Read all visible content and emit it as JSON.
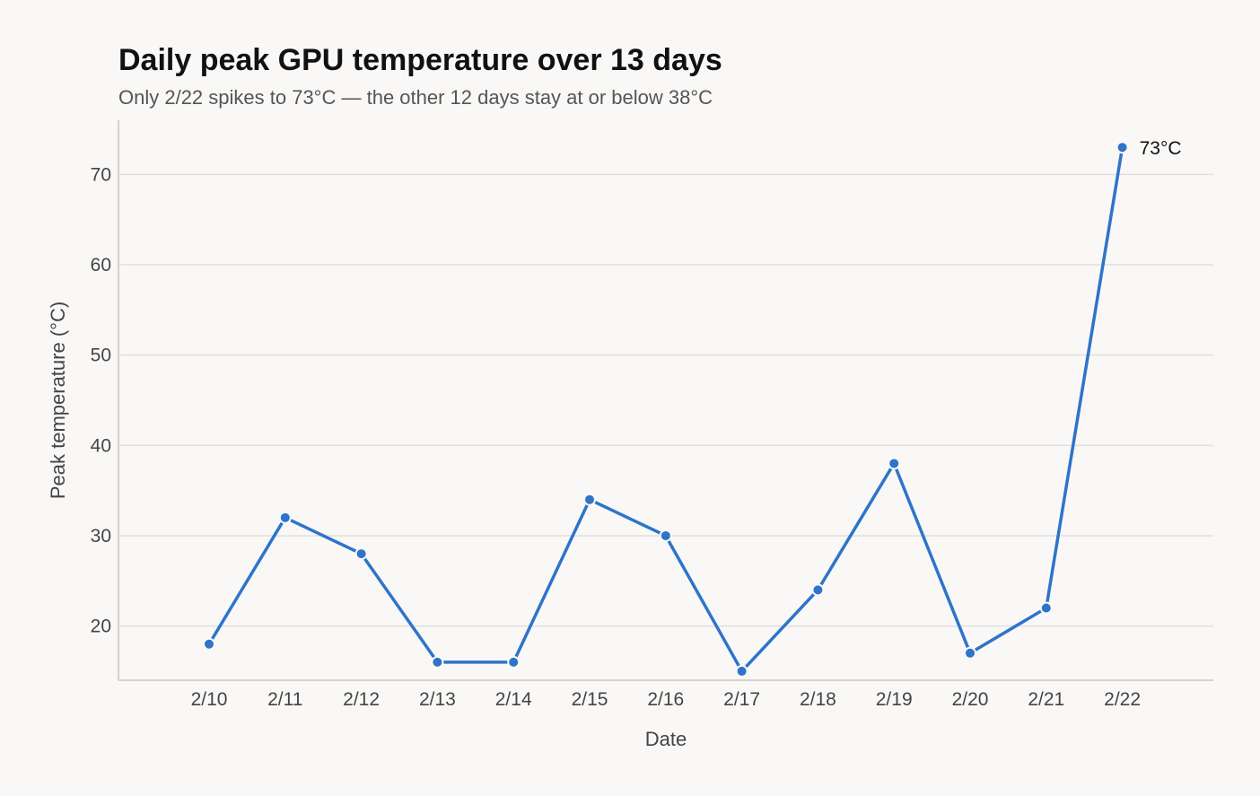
{
  "chart_data": {
    "type": "line",
    "title": "Daily peak GPU temperature over 13 days",
    "subtitle": "Only 2/22 spikes to 73°C — the other 12 days stay at or below 38°C",
    "xlabel": "Date",
    "ylabel": "Peak temperature (°C)",
    "categories": [
      "2/10",
      "2/11",
      "2/12",
      "2/13",
      "2/14",
      "2/15",
      "2/16",
      "2/17",
      "2/18",
      "2/19",
      "2/20",
      "2/21",
      "2/22"
    ],
    "series": [
      {
        "values": [
          18,
          32,
          28,
          16,
          16,
          34,
          30,
          15,
          24,
          38,
          17,
          22,
          73
        ]
      }
    ],
    "y_ticks": [
      20,
      30,
      40,
      50,
      60,
      70
    ],
    "ylim": [
      14,
      76
    ],
    "grid": "horizontal",
    "annotations": [
      {
        "category": "2/22",
        "value": 73,
        "text": "73°C"
      }
    ],
    "colors": {
      "line": "#2e74c9",
      "grid": "#e2e0de",
      "axis": "#c8c6c4",
      "background": "#f9f8f7"
    }
  }
}
